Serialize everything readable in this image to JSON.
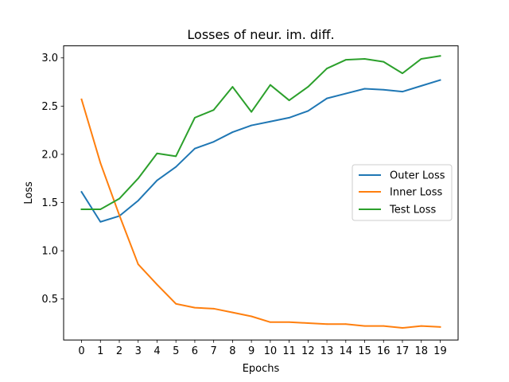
{
  "chart_data": {
    "type": "line",
    "title": "Losses of neur. im. diff.",
    "xlabel": "Epochs",
    "ylabel": "Loss",
    "x": [
      0,
      1,
      2,
      3,
      4,
      5,
      6,
      7,
      8,
      9,
      10,
      11,
      12,
      13,
      14,
      15,
      16,
      17,
      18,
      19
    ],
    "xticks": [
      "0",
      "1",
      "2",
      "3",
      "4",
      "5",
      "6",
      "7",
      "8",
      "9",
      "10",
      "11",
      "12",
      "13",
      "14",
      "15",
      "16",
      "17",
      "18",
      "19"
    ],
    "yticks": [
      "0.5",
      "1.0",
      "1.5",
      "2.0",
      "2.5",
      "3.0"
    ],
    "xlim": [
      -0.95,
      19.95
    ],
    "ylim": [
      0.075,
      3.125
    ],
    "grid": false,
    "legend_position": "center-right",
    "series": [
      {
        "name": "Outer Loss",
        "color": "#1f77b4",
        "values": [
          1.61,
          1.3,
          1.36,
          1.52,
          1.73,
          1.87,
          2.06,
          2.13,
          2.23,
          2.3,
          2.34,
          2.38,
          2.45,
          2.58,
          2.63,
          2.68,
          2.67,
          2.65,
          2.71,
          2.77
        ]
      },
      {
        "name": "Inner Loss",
        "color": "#ff7f0e",
        "values": [
          2.57,
          1.91,
          1.37,
          0.86,
          0.65,
          0.45,
          0.41,
          0.4,
          0.36,
          0.32,
          0.26,
          0.26,
          0.25,
          0.24,
          0.24,
          0.22,
          0.22,
          0.2,
          0.22,
          0.21
        ]
      },
      {
        "name": "Test Loss",
        "color": "#2ca02c",
        "values": [
          1.43,
          1.43,
          1.54,
          1.75,
          2.01,
          1.98,
          2.38,
          2.46,
          2.7,
          2.44,
          2.72,
          2.56,
          2.7,
          2.89,
          2.98,
          2.99,
          2.96,
          2.84,
          2.99,
          3.02
        ]
      }
    ]
  }
}
